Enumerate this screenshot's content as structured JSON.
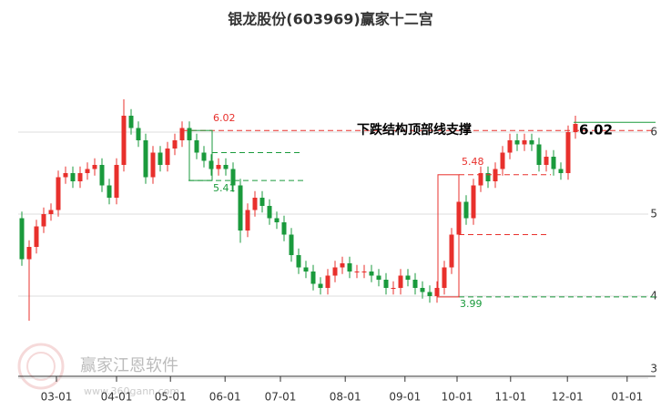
{
  "chart_data": {
    "type": "candlestick",
    "title": "银龙股份(603969)赢家十二宫",
    "watermark": {
      "name": "赢家江恩软件",
      "url": "www.360gann.com"
    },
    "up_color": "#e8302c",
    "down_color": "#1a9a3c",
    "xlim": [
      0,
      87.5
    ],
    "ylim": [
      3,
      7.2
    ],
    "xticks": [
      {
        "value": 5.25,
        "label": "03-01"
      },
      {
        "value": 13.5,
        "label": "04-01"
      },
      {
        "value": 20.9,
        "label": "05-01"
      },
      {
        "value": 28.4,
        "label": "06-01"
      },
      {
        "value": 36,
        "label": "07-01"
      },
      {
        "value": 44.9,
        "label": "08-01"
      },
      {
        "value": 53.1,
        "label": "09-01"
      },
      {
        "value": 60.25,
        "label": "10-01"
      },
      {
        "value": 67.6,
        "label": "11-01"
      },
      {
        "value": 75.4,
        "label": "12-01"
      },
      {
        "value": 83.6,
        "label": "01-01"
      }
    ],
    "yticks": [
      3,
      4,
      5,
      6
    ],
    "grid": true,
    "candles": {
      "open": [
        4.95,
        4.45,
        4.6,
        4.85,
        5.0,
        5.05,
        5.45,
        5.5,
        5.4,
        5.5,
        5.55,
        5.6,
        5.35,
        5.2,
        5.6,
        6.2,
        6.05,
        5.9,
        5.45,
        5.75,
        5.6,
        5.8,
        5.9,
        6.05,
        5.9,
        5.75,
        5.65,
        5.55,
        5.6,
        5.55,
        5.35,
        4.8,
        5.05,
        5.2,
        5.1,
        4.95,
        4.9,
        4.75,
        4.5,
        4.35,
        4.3,
        4.15,
        4.1,
        4.25,
        4.35,
        4.4,
        4.3,
        4.3,
        4.3,
        4.25,
        4.2,
        4.1,
        4.1,
        4.25,
        4.2,
        4.1,
        4.05,
        4.0,
        4.1,
        4.35,
        4.75,
        5.15,
        4.95,
        5.35,
        5.5,
        5.4,
        5.55,
        5.75,
        5.9,
        5.85,
        5.9,
        5.85,
        5.6,
        5.7,
        5.55,
        5.5,
        6.0
      ],
      "high": [
        5.03,
        4.68,
        4.93,
        5.08,
        5.13,
        5.53,
        5.58,
        5.58,
        5.58,
        5.63,
        5.68,
        5.68,
        5.43,
        5.68,
        6.4,
        6.28,
        6.13,
        5.98,
        5.83,
        5.83,
        5.88,
        5.98,
        6.13,
        6.13,
        5.98,
        5.83,
        5.73,
        5.68,
        5.68,
        5.63,
        5.43,
        5.13,
        5.28,
        5.28,
        5.18,
        5.03,
        4.98,
        4.83,
        4.58,
        4.43,
        4.38,
        4.23,
        4.33,
        4.43,
        4.48,
        4.48,
        4.38,
        4.38,
        4.38,
        4.33,
        4.28,
        4.18,
        4.33,
        4.33,
        4.28,
        4.18,
        4.13,
        4.18,
        4.43,
        4.83,
        5.23,
        5.23,
        5.43,
        5.58,
        5.58,
        5.63,
        5.83,
        5.98,
        5.98,
        5.98,
        5.98,
        5.93,
        5.78,
        5.78,
        5.63,
        6.08,
        6.2
      ],
      "low": [
        4.37,
        3.7,
        4.52,
        4.77,
        4.92,
        4.97,
        5.37,
        5.32,
        5.32,
        5.42,
        5.47,
        5.27,
        5.12,
        5.12,
        5.52,
        5.97,
        5.82,
        5.37,
        5.37,
        5.52,
        5.52,
        5.72,
        5.82,
        5.82,
        5.67,
        5.57,
        5.47,
        5.47,
        5.47,
        5.27,
        4.65,
        4.72,
        4.97,
        5.02,
        4.87,
        4.82,
        4.67,
        4.42,
        4.27,
        4.22,
        4.07,
        4.02,
        4.02,
        4.17,
        4.27,
        4.22,
        4.22,
        4.22,
        4.17,
        4.12,
        4.02,
        4.02,
        4.02,
        4.12,
        4.02,
        3.97,
        3.92,
        3.92,
        4.02,
        4.27,
        4.67,
        4.87,
        4.87,
        5.27,
        5.32,
        5.32,
        5.47,
        5.67,
        5.77,
        5.77,
        5.77,
        5.52,
        5.52,
        5.47,
        5.42,
        5.42,
        5.92
      ],
      "close": [
        4.45,
        4.6,
        4.85,
        5.0,
        5.05,
        5.45,
        5.5,
        5.4,
        5.5,
        5.55,
        5.6,
        5.35,
        5.2,
        5.6,
        6.2,
        6.05,
        5.9,
        5.45,
        5.75,
        5.6,
        5.8,
        5.9,
        6.05,
        5.9,
        5.75,
        5.65,
        5.55,
        5.6,
        5.55,
        5.35,
        4.8,
        5.05,
        5.2,
        5.1,
        4.95,
        4.9,
        4.75,
        4.5,
        4.35,
        4.3,
        4.15,
        4.1,
        4.25,
        4.35,
        4.4,
        4.3,
        4.3,
        4.3,
        4.25,
        4.2,
        4.1,
        4.1,
        4.25,
        4.2,
        4.1,
        4.05,
        4.0,
        4.1,
        4.35,
        4.75,
        5.15,
        4.95,
        5.35,
        5.5,
        5.4,
        5.55,
        5.75,
        5.9,
        5.85,
        5.9,
        5.85,
        5.6,
        5.7,
        5.55,
        5.5,
        6.0,
        6.1
      ]
    },
    "levels": [
      {
        "value": 6.02,
        "color": "#e8302c"
      },
      {
        "value": 5.41,
        "color": "#1a9a3c"
      },
      {
        "value": 5.48,
        "color": "#e8302c"
      },
      {
        "value": 3.99,
        "color": "#1a9a3c"
      }
    ],
    "guides": [
      {
        "value": 5.75,
        "color": "#1a9a3c"
      },
      {
        "value": 4.75,
        "color": "#e8302c"
      },
      {
        "value": 6.12,
        "color": "#1a9a3c"
      }
    ],
    "callout": {
      "text": "下跌结构顶部线支撑",
      "value": 6.02
    }
  }
}
